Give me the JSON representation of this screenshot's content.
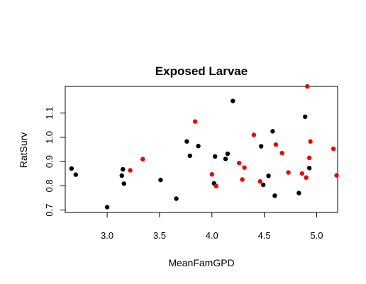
{
  "chart_data": {
    "type": "scatter",
    "title": "Exposed Larvae",
    "xlabel": "MeanFamGPD",
    "ylabel": "RatSurv",
    "xlim": [
      2.6,
      5.2
    ],
    "ylim": [
      0.69,
      1.21
    ],
    "x_ticks": [
      "3.0",
      "3.5",
      "4.0",
      "4.5",
      "5.0"
    ],
    "y_ticks": [
      "0.7",
      "0.8",
      "0.9",
      "1.0",
      "1.1"
    ],
    "grid": false,
    "series": [
      {
        "color": "#000000",
        "points": [
          [
            2.66,
            0.871
          ],
          [
            2.7,
            0.846
          ],
          [
            3.0,
            0.712
          ],
          [
            3.14,
            0.842
          ],
          [
            3.15,
            0.868
          ],
          [
            3.16,
            0.809
          ],
          [
            3.51,
            0.824
          ],
          [
            3.66,
            0.747
          ],
          [
            3.76,
            0.983
          ],
          [
            3.79,
            0.924
          ],
          [
            3.87,
            0.964
          ],
          [
            4.02,
            0.81
          ],
          [
            4.03,
            0.921
          ],
          [
            4.13,
            0.911
          ],
          [
            4.15,
            0.932
          ],
          [
            4.2,
            1.15
          ],
          [
            4.47,
            0.963
          ],
          [
            4.49,
            0.804
          ],
          [
            4.54,
            0.841
          ],
          [
            4.58,
            1.025
          ],
          [
            4.6,
            0.759
          ],
          [
            4.83,
            0.77
          ],
          [
            4.89,
            1.085
          ],
          [
            4.93,
            0.873
          ]
        ]
      },
      {
        "color": "#ee0000",
        "points": [
          [
            3.22,
            0.864
          ],
          [
            3.34,
            0.91
          ],
          [
            3.84,
            1.065
          ],
          [
            4.0,
            0.847
          ],
          [
            4.04,
            0.799
          ],
          [
            4.26,
            0.894
          ],
          [
            4.29,
            0.826
          ],
          [
            4.31,
            0.875
          ],
          [
            4.4,
            1.01
          ],
          [
            4.46,
            0.818
          ],
          [
            4.61,
            0.97
          ],
          [
            4.67,
            0.935
          ],
          [
            4.73,
            0.855
          ],
          [
            4.86,
            0.851
          ],
          [
            4.9,
            0.834
          ],
          [
            4.91,
            1.21
          ],
          [
            4.93,
            0.915
          ],
          [
            4.94,
            0.983
          ],
          [
            5.16,
            0.953
          ],
          [
            5.19,
            0.843
          ]
        ]
      }
    ]
  }
}
